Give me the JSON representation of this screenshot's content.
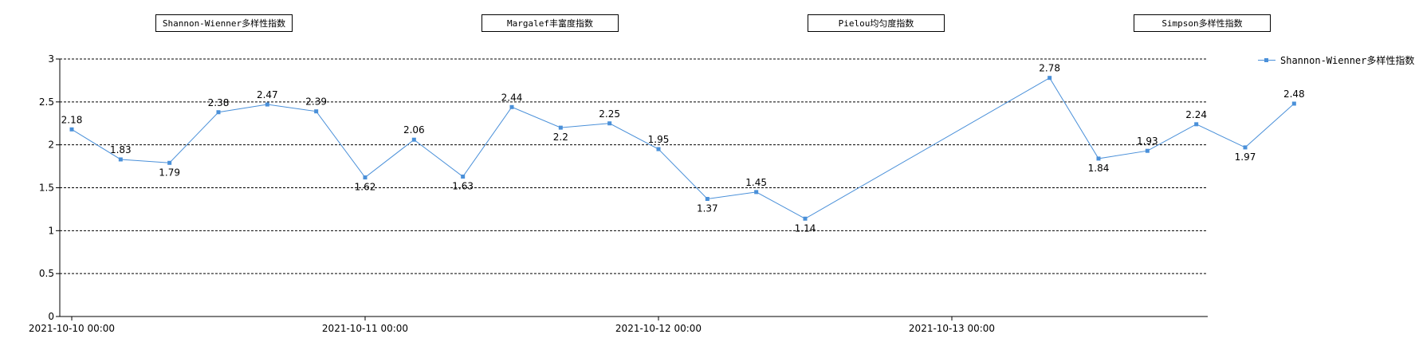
{
  "tabs": [
    {
      "label": "Shannon-Wienner多样性指数",
      "active": true
    },
    {
      "label": "Margalef丰富度指数",
      "active": false
    },
    {
      "label": "Pielou均匀度指数",
      "active": false
    },
    {
      "label": "Simpson多样性指数",
      "active": false
    }
  ],
  "colors": {
    "series": "#4a90d9",
    "active_tab": "#00ffff"
  },
  "chart_data": {
    "type": "line",
    "title": "",
    "xlabel": "",
    "ylabel": "",
    "ylim": [
      0,
      3
    ],
    "yticks": [
      "0",
      "0.5",
      "1",
      "1.5",
      "2",
      "2.5",
      "3"
    ],
    "xticks": [
      "2021-10-10 00:00",
      "2021-10-11 00:00",
      "2021-10-12 00:00",
      "2021-10-13 00:00"
    ],
    "grid": true,
    "legend": "right",
    "series": [
      {
        "name": "Shannon-Wienner多样性指数",
        "x": [
          "2021-10-10 00:00",
          "2021-10-10 04:00",
          "2021-10-10 08:00",
          "2021-10-10 12:00",
          "2021-10-10 16:00",
          "2021-10-10 20:00",
          "2021-10-11 00:00",
          "2021-10-11 04:00",
          "2021-10-11 08:00",
          "2021-10-11 12:00",
          "2021-10-11 16:00",
          "2021-10-11 20:00",
          "2021-10-12 00:00",
          "2021-10-12 04:00",
          "2021-10-12 08:00",
          "2021-10-12 12:00",
          "2021-10-13 08:00",
          "2021-10-13 12:00",
          "2021-10-13 16:00",
          "2021-10-13 20:00",
          "2021-10-14 00:00",
          "2021-10-14 04:00"
        ],
        "values": [
          2.18,
          1.83,
          1.79,
          2.38,
          2.47,
          2.39,
          1.62,
          2.06,
          1.63,
          2.44,
          2.2,
          2.25,
          1.95,
          1.37,
          1.45,
          1.14,
          2.78,
          1.84,
          1.93,
          2.24,
          1.97,
          2.48
        ],
        "labels": [
          "2.18",
          "1.83",
          "1.79",
          "2.38",
          "2.47",
          "2.39",
          "1.62",
          "2.06",
          "1.63",
          "2.44",
          "2.2",
          "2.25",
          "1.95",
          "1.37",
          "1.45",
          "1.14",
          "2.78",
          "1.84",
          "1.93",
          "2.24",
          "1.97",
          "2.48"
        ]
      }
    ]
  }
}
